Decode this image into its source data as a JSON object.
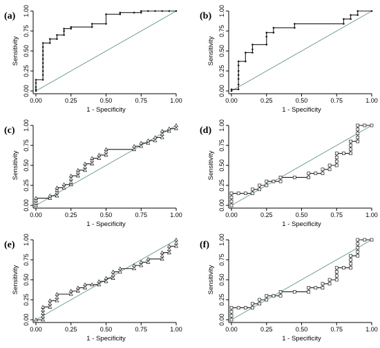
{
  "figure": {
    "background": "#ffffff"
  },
  "styles": {
    "roc_color": "#1a1a1a",
    "diagonal_color": "#6f9a9a",
    "axis_color": "#000000",
    "marker_fill": "#ffffff"
  },
  "chart_data": [
    {
      "panel": "(a)",
      "type": "line",
      "marker": "dot",
      "xlabel": "1 - Specificity",
      "ylabel": "Sensitivity",
      "xlim": [
        0,
        1
      ],
      "ylim": [
        0,
        1
      ],
      "xticks": [
        "0.00",
        "0.25",
        "0.50",
        "0.75",
        "1.00"
      ],
      "yticks": [
        "0.00",
        "0.25",
        "0.50",
        "0.75",
        "1.00"
      ],
      "diagonal": true,
      "points": [
        [
          0,
          0
        ],
        [
          0,
          0.02
        ],
        [
          0,
          0.05
        ],
        [
          0,
          0.1
        ],
        [
          0,
          0.14
        ],
        [
          0.05,
          0.14
        ],
        [
          0.05,
          0.2
        ],
        [
          0.05,
          0.25
        ],
        [
          0.05,
          0.3
        ],
        [
          0.05,
          0.35
        ],
        [
          0.05,
          0.4
        ],
        [
          0.05,
          0.45
        ],
        [
          0.05,
          0.5
        ],
        [
          0.05,
          0.55
        ],
        [
          0.05,
          0.6
        ],
        [
          0.1,
          0.6
        ],
        [
          0.1,
          0.65
        ],
        [
          0.15,
          0.65
        ],
        [
          0.15,
          0.7
        ],
        [
          0.2,
          0.7
        ],
        [
          0.2,
          0.75
        ],
        [
          0.2,
          0.78
        ],
        [
          0.25,
          0.78
        ],
        [
          0.25,
          0.8
        ],
        [
          0.4,
          0.8
        ],
        [
          0.4,
          0.84
        ],
        [
          0.5,
          0.84
        ],
        [
          0.5,
          0.96
        ],
        [
          0.6,
          0.96
        ],
        [
          0.6,
          0.98
        ],
        [
          0.7,
          0.98
        ],
        [
          0.75,
          0.98
        ],
        [
          0.75,
          1
        ],
        [
          0.8,
          1
        ],
        [
          0.85,
          1
        ],
        [
          0.9,
          1
        ],
        [
          0.95,
          1
        ],
        [
          1,
          1
        ]
      ]
    },
    {
      "panel": "(b)",
      "type": "line",
      "marker": "dot",
      "xlabel": "1 - Specificity",
      "ylabel": "Sensitivity",
      "xlim": [
        0,
        1
      ],
      "ylim": [
        0,
        1
      ],
      "xticks": [
        "0.00",
        "0.25",
        "0.50",
        "0.75",
        "1.00"
      ],
      "yticks": [
        "0.00",
        "0.25",
        "0.50",
        "0.75",
        "1.00"
      ],
      "diagonal": true,
      "points": [
        [
          0,
          0
        ],
        [
          0,
          0.02
        ],
        [
          0.05,
          0.02
        ],
        [
          0.05,
          0.08
        ],
        [
          0.05,
          0.15
        ],
        [
          0.05,
          0.2
        ],
        [
          0.05,
          0.25
        ],
        [
          0.05,
          0.32
        ],
        [
          0.05,
          0.37
        ],
        [
          0.1,
          0.37
        ],
        [
          0.1,
          0.48
        ],
        [
          0.15,
          0.48
        ],
        [
          0.15,
          0.52
        ],
        [
          0.15,
          0.58
        ],
        [
          0.25,
          0.58
        ],
        [
          0.25,
          0.68
        ],
        [
          0.25,
          0.73
        ],
        [
          0.3,
          0.73
        ],
        [
          0.3,
          0.79
        ],
        [
          0.45,
          0.79
        ],
        [
          0.45,
          0.84
        ],
        [
          0.8,
          0.84
        ],
        [
          0.8,
          0.9
        ],
        [
          0.85,
          0.9
        ],
        [
          0.85,
          0.95
        ],
        [
          0.9,
          0.95
        ],
        [
          0.9,
          1
        ],
        [
          1,
          1
        ]
      ]
    },
    {
      "panel": "(c)",
      "type": "line",
      "marker": "triangle",
      "xlabel": "1 - Specificity",
      "ylabel": "Sensitivity",
      "xlim": [
        0,
        1
      ],
      "ylim": [
        0,
        1
      ],
      "xticks": [
        "0.00",
        "0.25",
        "0.50",
        "0.75",
        "1.00"
      ],
      "yticks": [
        "0.00",
        "0.25",
        "0.50",
        "0.75",
        "1.00"
      ],
      "diagonal": true,
      "points": [
        [
          0,
          0
        ],
        [
          0,
          0.03
        ],
        [
          0,
          0.06
        ],
        [
          0,
          0.09
        ],
        [
          0.1,
          0.09
        ],
        [
          0.1,
          0.12
        ],
        [
          0.15,
          0.12
        ],
        [
          0.15,
          0.16
        ],
        [
          0.15,
          0.19
        ],
        [
          0.15,
          0.22
        ],
        [
          0.2,
          0.22
        ],
        [
          0.2,
          0.26
        ],
        [
          0.25,
          0.26
        ],
        [
          0.25,
          0.29
        ],
        [
          0.25,
          0.33
        ],
        [
          0.25,
          0.37
        ],
        [
          0.3,
          0.37
        ],
        [
          0.3,
          0.41
        ],
        [
          0.3,
          0.44
        ],
        [
          0.35,
          0.44
        ],
        [
          0.35,
          0.48
        ],
        [
          0.35,
          0.52
        ],
        [
          0.4,
          0.52
        ],
        [
          0.4,
          0.56
        ],
        [
          0.4,
          0.59
        ],
        [
          0.45,
          0.59
        ],
        [
          0.45,
          0.63
        ],
        [
          0.5,
          0.63
        ],
        [
          0.5,
          0.67
        ],
        [
          0.5,
          0.7
        ],
        [
          0.7,
          0.7
        ],
        [
          0.7,
          0.74
        ],
        [
          0.75,
          0.74
        ],
        [
          0.75,
          0.78
        ],
        [
          0.8,
          0.78
        ],
        [
          0.8,
          0.81
        ],
        [
          0.85,
          0.81
        ],
        [
          0.85,
          0.85
        ],
        [
          0.9,
          0.85
        ],
        [
          0.9,
          0.89
        ],
        [
          0.9,
          0.93
        ],
        [
          0.95,
          0.93
        ],
        [
          0.95,
          0.96
        ],
        [
          1,
          0.96
        ],
        [
          1,
          1
        ]
      ]
    },
    {
      "panel": "(d)",
      "type": "line",
      "marker": "square",
      "xlabel": "1 - Specificity",
      "ylabel": "Sensitivity",
      "xlim": [
        0,
        1
      ],
      "ylim": [
        0,
        1
      ],
      "xticks": [
        "0.00",
        "0.25",
        "0.50",
        "0.75",
        "1.00"
      ],
      "yticks": [
        "0.00",
        "0.25",
        "0.50",
        "0.75",
        "1.00"
      ],
      "diagonal": true,
      "points": [
        [
          0,
          0
        ],
        [
          0,
          0.05
        ],
        [
          0,
          0.1
        ],
        [
          0,
          0.15
        ],
        [
          0.05,
          0.15
        ],
        [
          0.1,
          0.15
        ],
        [
          0.15,
          0.15
        ],
        [
          0.15,
          0.2
        ],
        [
          0.2,
          0.2
        ],
        [
          0.2,
          0.25
        ],
        [
          0.25,
          0.25
        ],
        [
          0.25,
          0.3
        ],
        [
          0.3,
          0.3
        ],
        [
          0.35,
          0.3
        ],
        [
          0.35,
          0.35
        ],
        [
          0.45,
          0.35
        ],
        [
          0.55,
          0.35
        ],
        [
          0.55,
          0.4
        ],
        [
          0.6,
          0.4
        ],
        [
          0.65,
          0.4
        ],
        [
          0.65,
          0.45
        ],
        [
          0.7,
          0.45
        ],
        [
          0.7,
          0.5
        ],
        [
          0.75,
          0.5
        ],
        [
          0.75,
          0.55
        ],
        [
          0.75,
          0.6
        ],
        [
          0.75,
          0.65
        ],
        [
          0.8,
          0.65
        ],
        [
          0.85,
          0.65
        ],
        [
          0.85,
          0.7
        ],
        [
          0.85,
          0.75
        ],
        [
          0.85,
          0.8
        ],
        [
          0.9,
          0.8
        ],
        [
          0.9,
          0.85
        ],
        [
          0.9,
          0.9
        ],
        [
          0.9,
          0.95
        ],
        [
          0.9,
          1
        ],
        [
          0.95,
          1
        ],
        [
          1,
          1
        ]
      ]
    },
    {
      "panel": "(e)",
      "type": "line",
      "marker": "triangle",
      "xlabel": "1 - Specificity",
      "ylabel": "Sensitivity",
      "xlim": [
        0,
        1
      ],
      "ylim": [
        0,
        1
      ],
      "xticks": [
        "0.00",
        "0.25",
        "0.50",
        "0.75",
        "1.00"
      ],
      "yticks": [
        "0.00",
        "0.25",
        "0.50",
        "0.75",
        "1.00"
      ],
      "diagonal": true,
      "points": [
        [
          0,
          0
        ],
        [
          0.05,
          0
        ],
        [
          0.05,
          0.04
        ],
        [
          0.05,
          0.08
        ],
        [
          0.05,
          0.12
        ],
        [
          0.05,
          0.16
        ],
        [
          0.1,
          0.16
        ],
        [
          0.1,
          0.2
        ],
        [
          0.1,
          0.24
        ],
        [
          0.15,
          0.24
        ],
        [
          0.15,
          0.28
        ],
        [
          0.15,
          0.32
        ],
        [
          0.25,
          0.32
        ],
        [
          0.25,
          0.36
        ],
        [
          0.3,
          0.36
        ],
        [
          0.3,
          0.4
        ],
        [
          0.35,
          0.4
        ],
        [
          0.35,
          0.44
        ],
        [
          0.4,
          0.44
        ],
        [
          0.45,
          0.44
        ],
        [
          0.45,
          0.48
        ],
        [
          0.5,
          0.48
        ],
        [
          0.5,
          0.52
        ],
        [
          0.55,
          0.52
        ],
        [
          0.55,
          0.56
        ],
        [
          0.55,
          0.6
        ],
        [
          0.6,
          0.6
        ],
        [
          0.6,
          0.64
        ],
        [
          0.7,
          0.64
        ],
        [
          0.7,
          0.68
        ],
        [
          0.75,
          0.68
        ],
        [
          0.75,
          0.72
        ],
        [
          0.8,
          0.72
        ],
        [
          0.8,
          0.76
        ],
        [
          0.9,
          0.76
        ],
        [
          0.9,
          0.8
        ],
        [
          0.9,
          0.84
        ],
        [
          0.95,
          0.84
        ],
        [
          0.95,
          0.88
        ],
        [
          0.95,
          0.92
        ],
        [
          1,
          0.92
        ],
        [
          1,
          0.96
        ],
        [
          1,
          1
        ]
      ]
    },
    {
      "panel": "(f)",
      "type": "line",
      "marker": "square",
      "xlabel": "1 - Specificity",
      "ylabel": "Sensitivity",
      "xlim": [
        0,
        1
      ],
      "ylim": [
        0,
        1
      ],
      "xticks": [
        "0.00",
        "0.25",
        "0.50",
        "0.75",
        "1.00"
      ],
      "yticks": [
        "0.00",
        "0.25",
        "0.50",
        "0.75",
        "1.00"
      ],
      "diagonal": true,
      "points": [
        [
          0,
          0
        ],
        [
          0,
          0.05
        ],
        [
          0,
          0.1
        ],
        [
          0,
          0.15
        ],
        [
          0.05,
          0.15
        ],
        [
          0.1,
          0.15
        ],
        [
          0.15,
          0.15
        ],
        [
          0.15,
          0.2
        ],
        [
          0.2,
          0.2
        ],
        [
          0.2,
          0.25
        ],
        [
          0.25,
          0.25
        ],
        [
          0.25,
          0.3
        ],
        [
          0.3,
          0.3
        ],
        [
          0.35,
          0.3
        ],
        [
          0.35,
          0.35
        ],
        [
          0.45,
          0.35
        ],
        [
          0.55,
          0.35
        ],
        [
          0.55,
          0.4
        ],
        [
          0.6,
          0.4
        ],
        [
          0.65,
          0.4
        ],
        [
          0.65,
          0.45
        ],
        [
          0.7,
          0.45
        ],
        [
          0.7,
          0.5
        ],
        [
          0.75,
          0.5
        ],
        [
          0.75,
          0.55
        ],
        [
          0.75,
          0.6
        ],
        [
          0.75,
          0.65
        ],
        [
          0.8,
          0.65
        ],
        [
          0.85,
          0.65
        ],
        [
          0.85,
          0.7
        ],
        [
          0.85,
          0.75
        ],
        [
          0.85,
          0.8
        ],
        [
          0.9,
          0.8
        ],
        [
          0.9,
          0.85
        ],
        [
          0.9,
          0.9
        ],
        [
          0.9,
          0.95
        ],
        [
          0.9,
          1
        ],
        [
          0.95,
          1
        ],
        [
          1,
          1
        ]
      ]
    }
  ]
}
